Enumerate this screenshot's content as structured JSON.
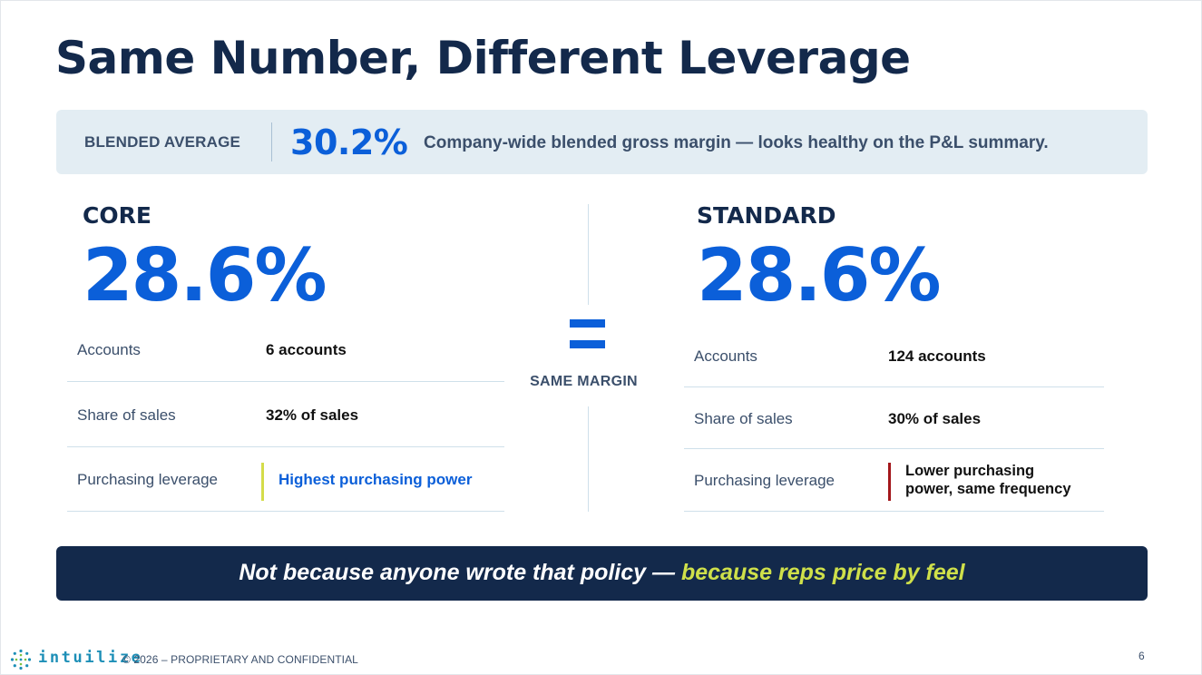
{
  "title": "Same Number, Different Leverage",
  "blended": {
    "label": "BLENDED AVERAGE",
    "value": "30.2%",
    "description": "Company-wide blended gross margin — looks healthy on the P&L summary."
  },
  "core": {
    "heading": "CORE",
    "margin": "28.6%",
    "rows": [
      {
        "label": "Accounts",
        "value": "6 accounts"
      },
      {
        "label": "Share of sales",
        "value": "32% of sales"
      },
      {
        "label": "Purchasing leverage",
        "value": "Highest purchasing power"
      }
    ],
    "accent_color": "#d4dc4a",
    "leverage_color": "#0b5fd9"
  },
  "center": {
    "label": "SAME MARGIN",
    "icon": "equals-icon"
  },
  "standard": {
    "heading": "STANDARD",
    "margin": "28.6%",
    "rows": [
      {
        "label": "Accounts",
        "value": "124 accounts"
      },
      {
        "label": "Share of sales",
        "value": "30% of sales"
      },
      {
        "label": "Purchasing leverage",
        "value_line1": "Lower purchasing",
        "value_line2": "power, same frequency"
      }
    ],
    "accent_color": "#a3171b"
  },
  "banner": {
    "text_white": "Not because anyone wrote that policy —",
    "text_yellow": "because reps price by feel"
  },
  "footer": {
    "logo_text": "intuilize",
    "copyright": "© 2026 – PROPRIETARY AND CONFIDENTIAL",
    "page_number": "6"
  },
  "colors": {
    "navy": "#13294b",
    "blue": "#0b5fd9",
    "panel": "#e3edf3",
    "highlight_yellow": "#cfe04a"
  }
}
